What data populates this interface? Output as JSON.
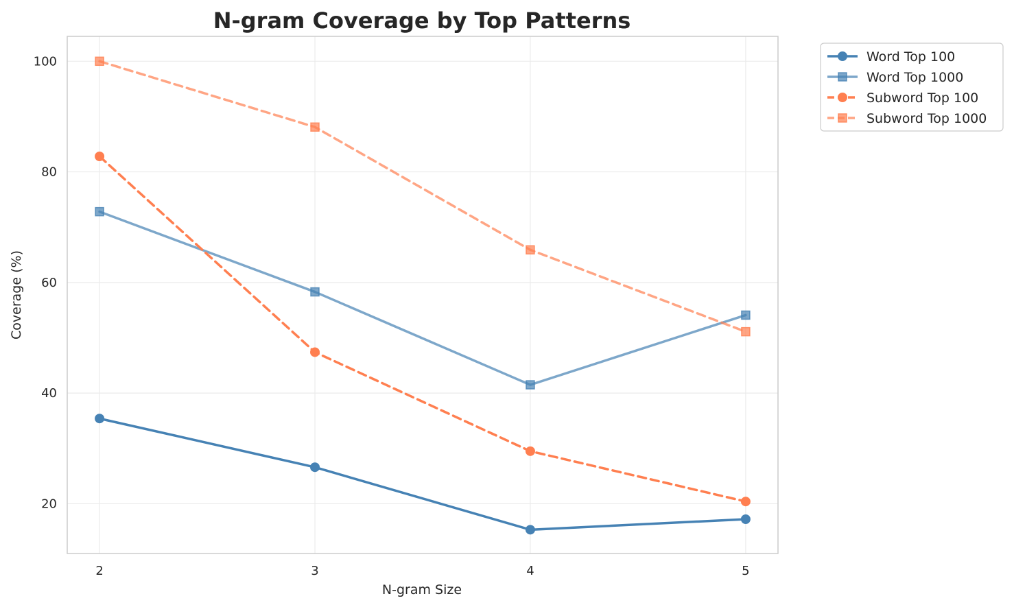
{
  "chart_data": {
    "type": "line",
    "title": "N-gram Coverage by Top Patterns",
    "xlabel": "N-gram Size",
    "ylabel": "Coverage (%)",
    "x": [
      2,
      3,
      4,
      5
    ],
    "xticks": [
      2,
      3,
      4,
      5
    ],
    "yticks": [
      20,
      40,
      60,
      80,
      100
    ],
    "xlim": [
      1.85,
      5.15
    ],
    "ylim": [
      11,
      104.5
    ],
    "grid": true,
    "legend_position": "outside-top-right",
    "series": [
      {
        "name": "Word Top 100",
        "values": [
          35.4,
          26.6,
          15.3,
          17.2
        ],
        "color": "#4682b4",
        "linestyle": "solid",
        "marker": "circle",
        "alpha": 1.0
      },
      {
        "name": "Word Top 1000",
        "values": [
          72.8,
          58.3,
          41.5,
          54.1
        ],
        "color": "#4682b4",
        "linestyle": "solid",
        "marker": "square",
        "alpha": 0.7
      },
      {
        "name": "Subword Top 100",
        "values": [
          82.8,
          47.4,
          29.5,
          20.4
        ],
        "color": "#ff7f50",
        "linestyle": "dashed",
        "marker": "circle",
        "alpha": 1.0
      },
      {
        "name": "Subword Top 1000",
        "values": [
          100.0,
          88.1,
          65.9,
          51.1
        ],
        "color": "#ff7f50",
        "linestyle": "dashed",
        "marker": "square",
        "alpha": 0.7
      }
    ]
  }
}
